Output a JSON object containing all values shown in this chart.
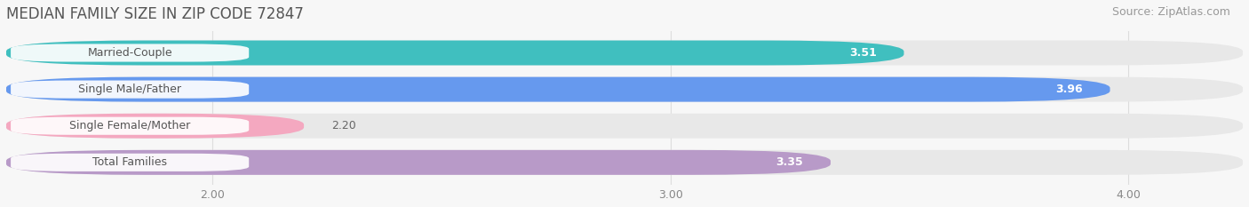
{
  "title": "MEDIAN FAMILY SIZE IN ZIP CODE 72847",
  "source": "Source: ZipAtlas.com",
  "categories": [
    "Married-Couple",
    "Single Male/Father",
    "Single Female/Mother",
    "Total Families"
  ],
  "values": [
    3.51,
    3.96,
    2.2,
    3.35
  ],
  "bar_colors": [
    "#40bfbf",
    "#6699ee",
    "#f4a8c0",
    "#b89ac8"
  ],
  "xlim": [
    1.55,
    4.25
  ],
  "xmin": 1.55,
  "xmax": 4.25,
  "xticks": [
    2.0,
    3.0,
    4.0
  ],
  "xtick_labels": [
    "2.00",
    "3.00",
    "4.00"
  ],
  "bar_height": 0.68,
  "background_color": "#f7f7f7",
  "title_fontsize": 12,
  "source_fontsize": 9,
  "tick_fontsize": 9,
  "bar_label_fontsize": 9,
  "category_fontsize": 9,
  "grid_color": "#dddddd",
  "bar_bg_color": "#e8e8e8",
  "label_pill_color": "#ffffff",
  "label_text_color": "#555555",
  "value_inside_color": "#ffffff",
  "value_outside_color": "#666666"
}
